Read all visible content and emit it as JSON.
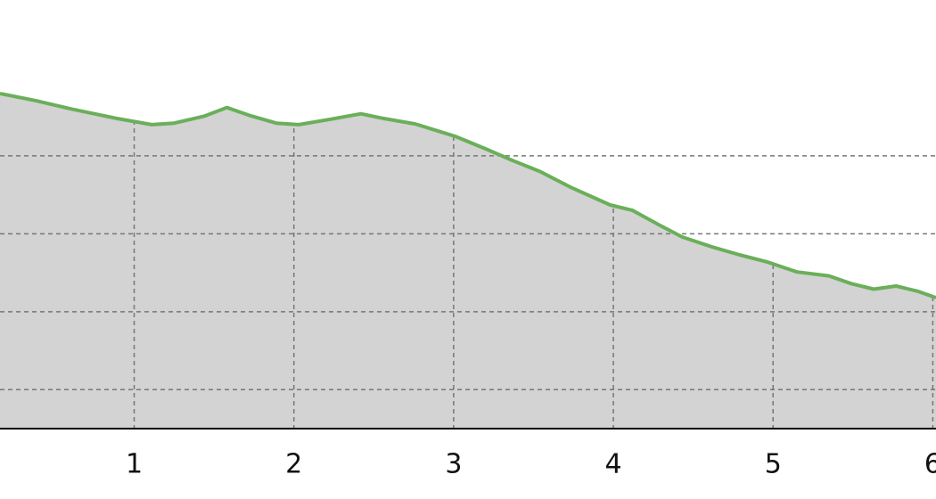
{
  "chart_data": {
    "type": "area",
    "x": [
      0.16,
      0.38,
      0.61,
      0.89,
      1.11,
      1.25,
      1.44,
      1.58,
      1.72,
      1.89,
      2.03,
      2.23,
      2.42,
      2.56,
      2.76,
      3.01,
      3.2,
      3.37,
      3.54,
      3.73,
      3.98,
      4.12,
      4.29,
      4.43,
      4.62,
      4.79,
      4.96,
      5.15,
      5.35,
      5.49,
      5.63,
      5.77,
      5.91,
      6.02
    ],
    "values": [
      4.8,
      4.71,
      4.6,
      4.48,
      4.4,
      4.42,
      4.51,
      4.62,
      4.52,
      4.42,
      4.4,
      4.47,
      4.54,
      4.48,
      4.41,
      4.25,
      4.09,
      3.94,
      3.8,
      3.6,
      3.37,
      3.3,
      3.11,
      2.96,
      2.83,
      2.73,
      2.64,
      2.51,
      2.46,
      2.36,
      2.29,
      2.33,
      2.26,
      2.18
    ],
    "color": "#6aaf5a",
    "fill": "#d3d3d3",
    "xlim": [
      0.16,
      6.02
    ],
    "xticks": [
      1,
      2,
      3,
      4,
      5,
      6
    ],
    "ylim": [
      0.5,
      6
    ],
    "ygrid": [
      1,
      2,
      3,
      4
    ],
    "grid": true
  }
}
